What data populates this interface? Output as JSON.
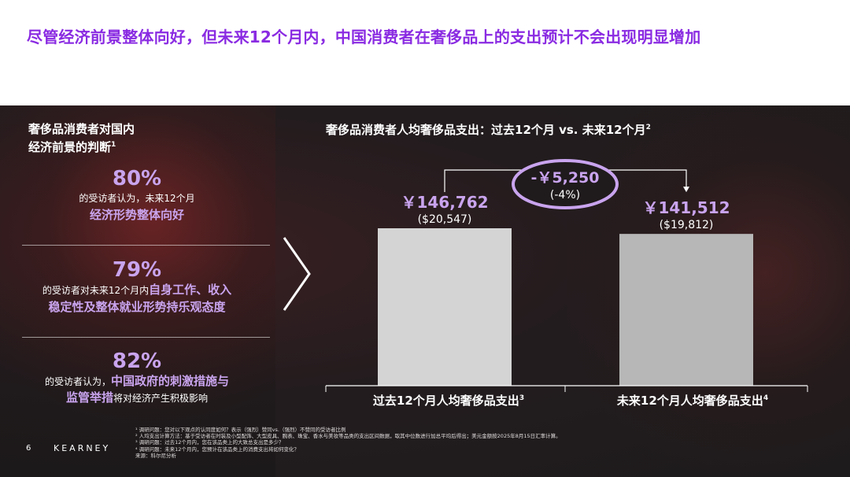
{
  "headline": "尽管经济前景整体向好，但未来12个月内，中国消费者在奢侈品上的支出预计不会出现明显增加",
  "left": {
    "title_line1": "奢侈品消费者对国内",
    "title_line2": "经济前景的判断",
    "title_sup": "1",
    "stats": [
      {
        "pct": "80%",
        "pre": "的受访者认为，未来12个月",
        "highlight": "经济形势整体向好",
        "post": ""
      },
      {
        "pct": "79%",
        "pre": "的受访者对未来12个月内",
        "highlight_a": "自身工作、收入",
        "highlight_b": "稳定性及整体就业形势持乐观态度"
      },
      {
        "pct": "82%",
        "pre": "的受访者认为，",
        "highlight_a": "中国政府的刺激措施与",
        "highlight_b": "监管举措",
        "post": "将对经济产生积极影响"
      }
    ]
  },
  "chart_title": "奢侈品消费者人均奢侈品支出：过去12个月 vs. 未来12个月",
  "chart_title_sup": "2",
  "chart_data": {
    "type": "bar",
    "categories": [
      "过去12个月人均奢侈品支出",
      "未来12个月人均奢侈品支出"
    ],
    "category_sups": [
      "3",
      "4"
    ],
    "values": [
      146762,
      141512
    ],
    "value_labels": [
      "￥146,762",
      "￥141,512"
    ],
    "usd_labels": [
      "($20,547)",
      "($19,812)"
    ],
    "ylim": [
      0,
      146762
    ],
    "bar_colors": [
      "#d4d4d4",
      "#b7b7b7"
    ],
    "difference_label": "-￥5,250",
    "difference_pct": "(-4%)",
    "accent_color": "#c9a4ee"
  },
  "footnotes": [
    "¹ 调研问题：您对以下观点的认同度如何？表示（强烈）赞同vs.（强烈）不赞同的受访者比例",
    "² 人均支出计算方法：基于受访者在时装及小型配饰、大型皮具、腕表、珠宝、香水与美妆等品类的支出区间数据，取其中位数进行加总平均后得出；美元金额按2025年8月15日汇率计算。",
    "³ 调研问题：过去12个月内，您在该品类上的大致总支出是多少？",
    "⁴ 调研问题：未来12个月内，您预计在该品类上的消费支出将如何变化？",
    "来源：科尔尼分析"
  ],
  "page_number": "6",
  "brand": "KEARNEY"
}
